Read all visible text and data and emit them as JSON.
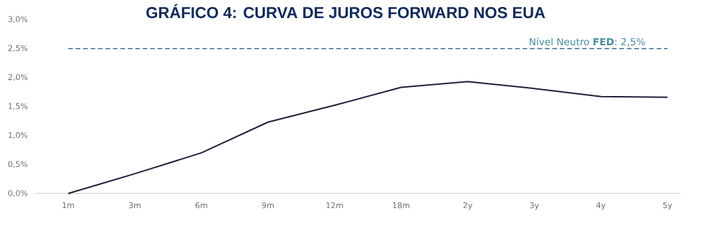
{
  "chart_data": {
    "type": "line",
    "title": "GRÁFICO 4: CURVA DE JUROS FORWARD NOS EUA",
    "categories": [
      "1m",
      "3m",
      "6m",
      "9m",
      "12m",
      "18m",
      "2y",
      "3y",
      "4y",
      "5y"
    ],
    "series": [
      {
        "color": "#1a1f36",
        "values": [
          0.0,
          0.34,
          0.7,
          1.23,
          1.52,
          1.83,
          1.93,
          1.81,
          1.67,
          1.66
        ]
      }
    ],
    "ylim": [
      0,
      3
    ],
    "yticks": [
      {
        "value": 0,
        "label": "0,0%"
      },
      {
        "value": 0.5,
        "label": "0,5%"
      },
      {
        "value": 1,
        "label": "1,0%"
      },
      {
        "value": 1.5,
        "label": "1,5%"
      },
      {
        "value": 2,
        "label": "2,0%"
      },
      {
        "value": 2.5,
        "label": "2,5%"
      },
      {
        "value": 3,
        "label": "3,0%"
      }
    ],
    "ref_lines": [
      {
        "axis": "y",
        "value": 2.5,
        "label": "Nível Neutro **FED**: 2,5%",
        "color": "#3d6896",
        "line_style": "dashed"
      }
    ],
    "marker": "none",
    "line_style": "solid"
  }
}
